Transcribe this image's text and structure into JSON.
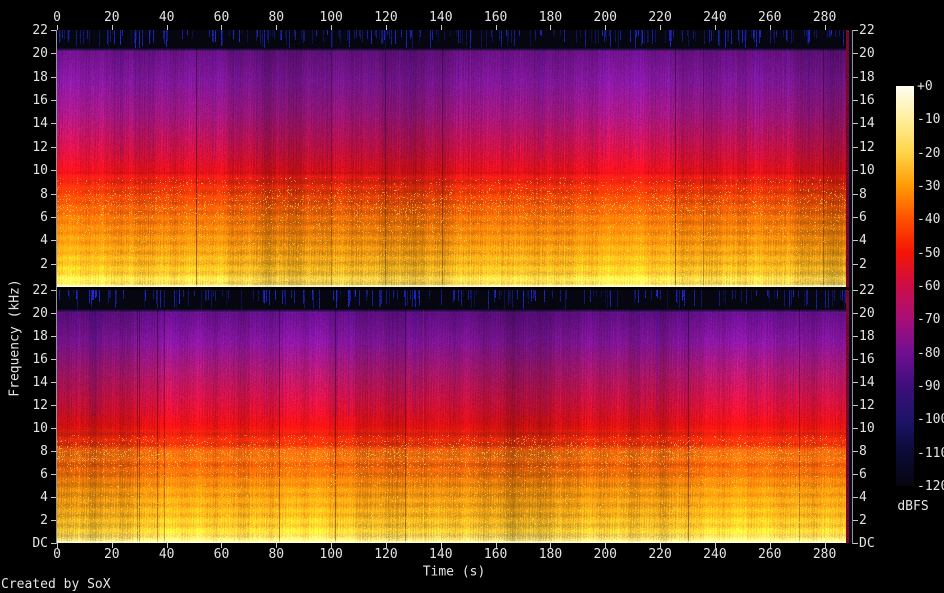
{
  "figure": {
    "credit": "Created by SoX",
    "background": "#000000",
    "text_color": "#e4e4e4",
    "tick_color": "#c8c8c8",
    "spine_color": "#969696"
  },
  "chart_data": {
    "type": "heatmap",
    "subtype": "audio-spectrogram-dual-channel",
    "title": "",
    "xlabel": "Time (s)",
    "ylabel": "Frequency (kHz)",
    "x_range_s": [
      0,
      290
    ],
    "x_ticks": [
      0,
      20,
      40,
      60,
      80,
      100,
      120,
      140,
      160,
      180,
      200,
      220,
      240,
      260,
      280
    ],
    "y_range_khz": [
      0,
      22
    ],
    "y_tick_labels": [
      "22",
      "20",
      "18",
      "16",
      "14",
      "12",
      "10",
      "8",
      "6",
      "4",
      "2",
      "DC"
    ],
    "y_tick_khz": [
      22,
      20,
      18,
      16,
      14,
      12,
      10,
      8,
      6,
      4,
      2,
      0
    ],
    "upper_channel_shows_dc_label": false,
    "legend_position": "right",
    "grid": false,
    "colorbar": {
      "label": "dBFS",
      "ticks": [
        "+0",
        "-10",
        "-20",
        "-30",
        "-40",
        "-50",
        "-60",
        "-70",
        "-80",
        "-90",
        "-100",
        "-110",
        "-120"
      ],
      "stops": [
        {
          "db": "+0",
          "color": "#fffdf2"
        },
        {
          "db": "-10",
          "color": "#ffef9c"
        },
        {
          "db": "-20",
          "color": "#ffd448"
        },
        {
          "db": "-30",
          "color": "#ff9a06"
        },
        {
          "db": "-40",
          "color": "#fe5000"
        },
        {
          "db": "-50",
          "color": "#f31405"
        },
        {
          "db": "-60",
          "color": "#cd0d47"
        },
        {
          "db": "-70",
          "color": "#a70f78"
        },
        {
          "db": "-80",
          "color": "#6f0f90"
        },
        {
          "db": "-90",
          "color": "#3e0e7a"
        },
        {
          "db": "-100",
          "color": "#1d1468"
        },
        {
          "db": "-110",
          "color": "#0b0a36"
        },
        {
          "db": "-120",
          "color": "#06050e"
        }
      ]
    },
    "channels": [
      {
        "name": "channel-1-upper",
        "freq_color_profile": [
          {
            "p": 0.0,
            "color": "#05050c"
          },
          {
            "p": 0.07,
            "color": "#0a0a1a"
          },
          {
            "p": 0.085,
            "color": "#64107e"
          },
          {
            "p": 0.2,
            "color": "#7b1692"
          },
          {
            "p": 0.33,
            "color": "#9a1578"
          },
          {
            "p": 0.45,
            "color": "#bf1147"
          },
          {
            "p": 0.55,
            "color": "#dc1018"
          },
          {
            "p": 0.63,
            "color": "#e83806"
          },
          {
            "p": 0.73,
            "color": "#ee6d06"
          },
          {
            "p": 0.84,
            "color": "#f6960e"
          },
          {
            "p": 0.93,
            "color": "#fbba20"
          },
          {
            "p": 0.985,
            "color": "#ffdf5a"
          },
          {
            "p": 1.0,
            "color": "#fff2b4"
          }
        ],
        "speckle_peak": 0.68
      },
      {
        "name": "channel-2-lower",
        "freq_color_profile": [
          {
            "p": 0.0,
            "color": "#05050c"
          },
          {
            "p": 0.075,
            "color": "#0a0a1a"
          },
          {
            "p": 0.09,
            "color": "#5e0e80"
          },
          {
            "p": 0.2,
            "color": "#7d1494"
          },
          {
            "p": 0.32,
            "color": "#a31668"
          },
          {
            "p": 0.43,
            "color": "#c61140"
          },
          {
            "p": 0.53,
            "color": "#de1012"
          },
          {
            "p": 0.61,
            "color": "#e83208"
          },
          {
            "p": 0.645,
            "color": "#ef7210"
          },
          {
            "p": 0.69,
            "color": "#ec5c08"
          },
          {
            "p": 0.78,
            "color": "#f28c0c"
          },
          {
            "p": 0.88,
            "color": "#f8ac18"
          },
          {
            "p": 0.95,
            "color": "#fcca30"
          },
          {
            "p": 0.99,
            "color": "#ffe880"
          },
          {
            "p": 1.0,
            "color": "#fff6c4"
          }
        ],
        "speckle_peak": 0.64
      }
    ]
  }
}
